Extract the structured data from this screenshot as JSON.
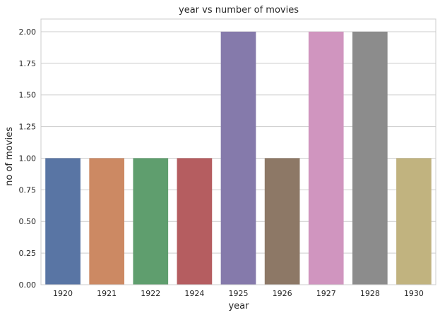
{
  "chart_data": {
    "type": "bar",
    "title": "year vs number of movies",
    "xlabel": "year",
    "ylabel": "no of movies",
    "categories": [
      "1920",
      "1921",
      "1922",
      "1924",
      "1925",
      "1926",
      "1927",
      "1928",
      "1930"
    ],
    "values": [
      1,
      1,
      1,
      1,
      2,
      1,
      2,
      2,
      1
    ],
    "colors": [
      "#5975a4",
      "#cc8963",
      "#5f9e6e",
      "#b55d60",
      "#857aab",
      "#8d7866",
      "#d095bf",
      "#8c8c8c",
      "#c1b37f"
    ],
    "yticks": [
      "0.00",
      "0.25",
      "0.50",
      "0.75",
      "1.00",
      "1.25",
      "1.50",
      "1.75",
      "2.00"
    ],
    "ylim": [
      0,
      2.1
    ],
    "grid": "y"
  }
}
